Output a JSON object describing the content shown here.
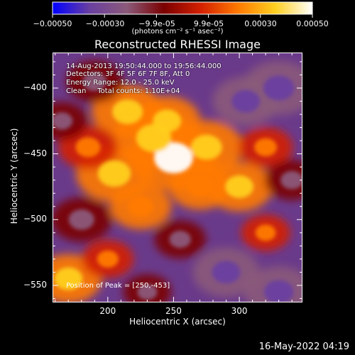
{
  "chart_data": {
    "type": "heatmap",
    "title": "Reconstructed RHESSI Image",
    "xlabel": "Heliocentric X (arcsec)",
    "ylabel": "Heliocentric Y (arcsec)",
    "xlim": [
      158,
      348
    ],
    "ylim": [
      -563,
      -373
    ],
    "x_ticks": [
      "200",
      "250",
      "300"
    ],
    "y_ticks": [
      "-400",
      "-450",
      "-500",
      "-550"
    ],
    "colorbar": {
      "range": [
        -0.0005,
        0.0005
      ],
      "tick_labels": [
        "-0.00050",
        "-0.00030",
        "-9.9e-05",
        "9.9e-05",
        "0.00030",
        "0.00050"
      ],
      "units": "(photons cm⁻² s⁻¹ asec⁻²)",
      "colormap": [
        "#0000ff",
        "#6a3fa0",
        "#8b5a7a",
        "#7a0000",
        "#d42000",
        "#ff7a00",
        "#ffcf20",
        "#ffffff"
      ]
    },
    "info_lines": [
      "14-Aug-2013 19:50:44.000 to 19:56:44.000",
      "Detectors: 3F 4F 5F 6F 7F 8F, Att 0",
      "Energy Range: 12.0 - 25.0 keV",
      "Clean     Total counts: 1.10E+04"
    ],
    "peak_label": "Position of Peak = [250,-453]",
    "peak": {
      "x": 250,
      "y": -453
    },
    "sources": [
      {
        "x": 250,
        "y": -453,
        "flux": 0.00048
      },
      {
        "x": 235,
        "y": -438,
        "flux": 0.00042
      },
      {
        "x": 205,
        "y": -465,
        "flux": 0.00038
      },
      {
        "x": 215,
        "y": -418,
        "flux": 0.00034
      },
      {
        "x": 275,
        "y": -445,
        "flux": 0.00035
      },
      {
        "x": 300,
        "y": -475,
        "flux": 0.0003
      },
      {
        "x": 225,
        "y": -490,
        "flux": 0.00026
      },
      {
        "x": 185,
        "y": -445,
        "flux": 0.00024
      },
      {
        "x": 270,
        "y": -475,
        "flux": 0.00026
      },
      {
        "x": 320,
        "y": -445,
        "flux": 0.0002
      },
      {
        "x": 170,
        "y": -545,
        "flux": 0.0003
      },
      {
        "x": 200,
        "y": -530,
        "flux": 0.00018
      },
      {
        "x": 320,
        "y": -510,
        "flux": 0.00016
      },
      {
        "x": 245,
        "y": -425,
        "flux": 0.0003
      },
      {
        "x": 190,
        "y": -395,
        "flux": -0.00022
      },
      {
        "x": 330,
        "y": -400,
        "flux": -0.00035
      },
      {
        "x": 305,
        "y": -410,
        "flux": -0.0003
      },
      {
        "x": 290,
        "y": -540,
        "flux": -0.0003
      },
      {
        "x": 330,
        "y": -555,
        "flux": -0.00032
      },
      {
        "x": 180,
        "y": -500,
        "flux": -0.00025
      },
      {
        "x": 255,
        "y": -515,
        "flux": -0.00018
      },
      {
        "x": 165,
        "y": -425,
        "flux": -0.00018
      },
      {
        "x": 340,
        "y": -470,
        "flux": -0.0002
      },
      {
        "x": 230,
        "y": -555,
        "flux": -0.00015
      }
    ]
  },
  "footer": {
    "date": "16-May-2022 04:19"
  }
}
